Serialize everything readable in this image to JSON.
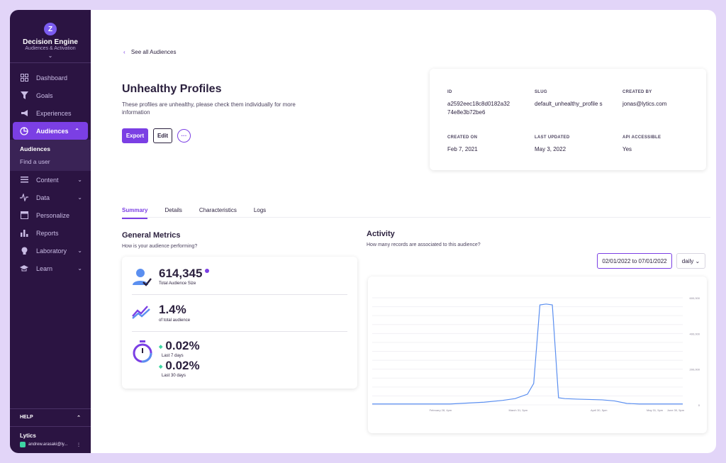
{
  "sidebar": {
    "brand_title": "Decision Engine",
    "brand_sub": "Audiences & Activation",
    "brand_logo": "Z",
    "items": [
      {
        "label": "Dashboard",
        "icon": "dashboard-icon"
      },
      {
        "label": "Goals",
        "icon": "goals-icon"
      },
      {
        "label": "Experiences",
        "icon": "megaphone-icon"
      },
      {
        "label": "Audiences",
        "icon": "pie-icon",
        "active": true
      },
      {
        "label": "Content",
        "icon": "list-icon"
      },
      {
        "label": "Data",
        "icon": "pulse-icon"
      },
      {
        "label": "Personalize",
        "icon": "window-icon"
      },
      {
        "label": "Reports",
        "icon": "bars-icon"
      },
      {
        "label": "Laboratory",
        "icon": "bulb-icon"
      },
      {
        "label": "Learn",
        "icon": "graduation-icon"
      }
    ],
    "subnav": [
      "Audiences",
      "Find a user"
    ],
    "help_label": "HELP",
    "account_name": "Lytics",
    "account_user": "andrew.arasaki@ly..."
  },
  "header": {
    "back_label": "See all Audiences",
    "title": "Unhealthy Profiles",
    "description": "These profiles are unhealthy, please check them individually for more information",
    "export_label": "Export",
    "edit_label": "Edit",
    "more_label": "···"
  },
  "meta": {
    "id_label": "ID",
    "id_value": "a2592eec18c8d0182a32 74e8e3b72be6",
    "slug_label": "SLUG",
    "slug_value": "default_unhealthy_profile s",
    "created_by_label": "CREATED BY",
    "created_by_value": "jonas@lytics.com",
    "created_on_label": "CREATED ON",
    "created_on_value": "Feb 7, 2021",
    "updated_label": "LAST UPDATED",
    "updated_value": "May 3, 2022",
    "api_label": "API ACCESSIBLE",
    "api_value": "Yes"
  },
  "tabs": [
    "Summary",
    "Details",
    "Characteristics",
    "Logs"
  ],
  "metrics": {
    "title": "General Metrics",
    "subtitle": "How is your audience performing?",
    "size_value": "614,345",
    "size_label": "Total Audience Size",
    "pct_value": "1.4%",
    "pct_label": "of total audience",
    "d7_value": "0.02%",
    "d7_label": "Last 7 days",
    "d30_value": "0.02%",
    "d30_label": "Last 30 days"
  },
  "activity": {
    "title": "Activity",
    "subtitle": "How many records are associated to this audience?",
    "date_range": "02/01/2022 to 07/01/2022",
    "interval": "daily",
    "interval_caret": "⌄"
  },
  "chart_data": {
    "type": "line",
    "x_ticks": [
      "February 28, 4pm",
      "March 31, 5pm",
      "April 30, 5pm",
      "May 31, 5pm",
      "June 30, 5pm"
    ],
    "y_ticks": [
      "0",
      "200,000",
      "400,000",
      "600,000"
    ],
    "ylim": [
      0,
      600000
    ],
    "color": "#5b8ff0",
    "x": [
      0,
      0.25,
      0.36,
      0.42,
      0.46,
      0.5,
      0.52,
      0.54,
      0.56,
      0.58,
      0.6,
      0.62,
      0.66,
      0.7,
      0.74,
      0.78,
      0.82,
      0.86,
      0.9,
      1.0
    ],
    "values": [
      5000,
      5000,
      15000,
      25000,
      35000,
      60000,
      120000,
      560000,
      565000,
      560000,
      40000,
      35000,
      32000,
      30000,
      28000,
      22000,
      8000,
      5000,
      5000,
      5000
    ]
  }
}
